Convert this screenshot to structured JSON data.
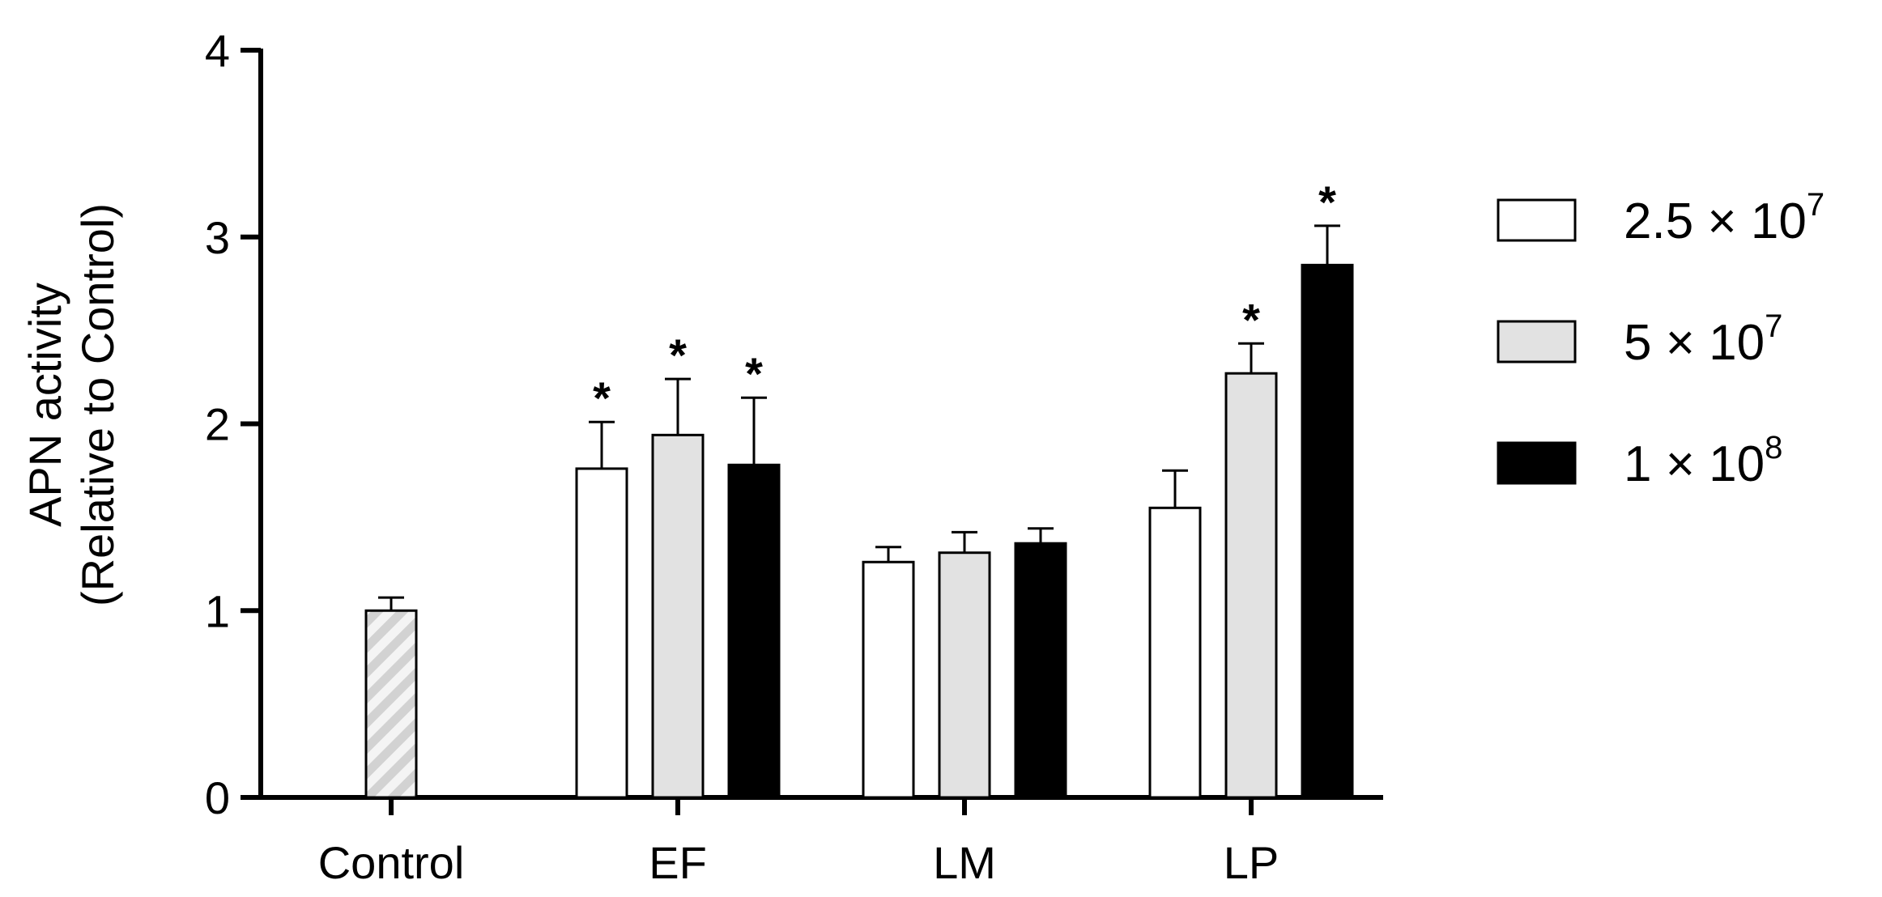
{
  "chart_data": {
    "type": "bar",
    "ylabel_line1": "APN activity",
    "ylabel_line2": "(Relative to Control)",
    "ylim": [
      0,
      4
    ],
    "yticks": [
      0,
      1,
      2,
      3,
      4
    ],
    "grid": false,
    "legend_position": "right",
    "categories": [
      "Control",
      "EF",
      "LM",
      "LP"
    ],
    "control": {
      "label": "Control",
      "value": 1.0,
      "error": 0.07,
      "fill": "hatched-light-gray"
    },
    "series": [
      {
        "name": "2.5 × 10",
        "exp": "7",
        "color": "#ffffff",
        "values": [
          null,
          1.76,
          1.26,
          1.55
        ],
        "errors": [
          null,
          0.25,
          0.08,
          0.2
        ],
        "significant": [
          false,
          true,
          false,
          false
        ]
      },
      {
        "name": "5 × 10",
        "exp": "7",
        "color": "#e2e2e2",
        "values": [
          null,
          1.94,
          1.31,
          2.27
        ],
        "errors": [
          null,
          0.3,
          0.11,
          0.16
        ],
        "significant": [
          false,
          true,
          false,
          true
        ]
      },
      {
        "name": "1 × 10",
        "exp": "8",
        "color": "#000000",
        "values": [
          null,
          1.78,
          1.36,
          2.85
        ],
        "errors": [
          null,
          0.36,
          0.08,
          0.21
        ],
        "significant": [
          false,
          true,
          false,
          true
        ]
      }
    ],
    "significance_marker": "*"
  }
}
